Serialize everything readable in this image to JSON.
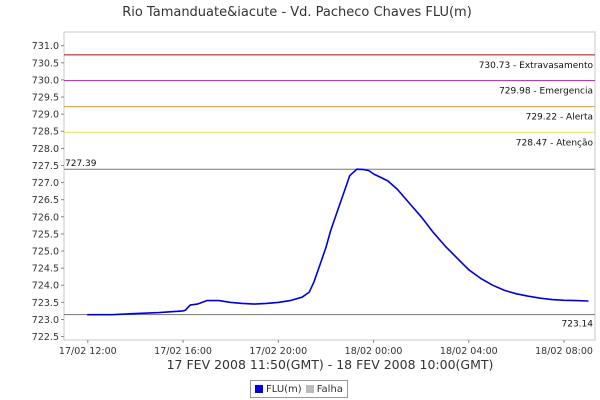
{
  "chart_data": {
    "type": "line",
    "title": "Rio Tamanduate&iacute - Vd. Pacheco Chaves FLU(m)",
    "xlabel": "17 FEV 2008 11:50(GMT) - 18 FEV 2008 10:00(GMT)",
    "ylabel": "",
    "ylim": [
      722.4,
      731.4
    ],
    "yticks": [
      722.5,
      723.0,
      723.5,
      724.0,
      724.5,
      725.0,
      725.5,
      726.0,
      726.5,
      727.0,
      727.5,
      728.0,
      728.5,
      729.0,
      729.5,
      730.0,
      730.5,
      731.0
    ],
    "x_ticks": [
      "17/02 12:00",
      "17/02 16:00",
      "17/02 20:00",
      "18/02 00:00",
      "18/02 04:00",
      "18/02 08:00"
    ],
    "x_tick_hours": [
      12,
      16,
      20,
      24,
      28,
      32
    ],
    "xlim_hours": [
      11,
      33.3
    ],
    "grid": false,
    "legend_position": "bottom",
    "series": [
      {
        "name": "FLU(m)",
        "color": "#0000dd",
        "x_hours": [
          12.0,
          13.0,
          14.0,
          15.0,
          16.0,
          16.1,
          16.3,
          16.6,
          17.0,
          17.5,
          18.0,
          18.5,
          19.0,
          19.5,
          20.0,
          20.5,
          21.0,
          21.3,
          21.5,
          21.7,
          22.0,
          22.2,
          22.5,
          22.8,
          23.0,
          23.3,
          23.6,
          23.8,
          24.0,
          24.3,
          24.6,
          25.0,
          25.5,
          26.0,
          26.5,
          27.0,
          27.5,
          28.0,
          28.5,
          29.0,
          29.5,
          30.0,
          30.5,
          31.0,
          31.5,
          32.0,
          32.5,
          33.0
        ],
        "values": [
          723.14,
          723.14,
          723.17,
          723.2,
          723.25,
          723.27,
          723.42,
          723.45,
          723.55,
          723.55,
          723.5,
          723.47,
          723.45,
          723.47,
          723.5,
          723.55,
          723.65,
          723.8,
          724.1,
          724.5,
          725.1,
          725.6,
          726.2,
          726.8,
          727.2,
          727.39,
          727.38,
          727.35,
          727.25,
          727.15,
          727.05,
          726.8,
          726.4,
          726.0,
          725.55,
          725.15,
          724.8,
          724.45,
          724.2,
          724.0,
          723.85,
          723.75,
          723.68,
          723.62,
          723.58,
          723.56,
          723.55,
          723.54
        ]
      },
      {
        "name": "Falha",
        "color": "#bbbbbb",
        "x_hours": [],
        "values": []
      }
    ],
    "thresholds": [
      {
        "value": 730.73,
        "label": "730.73 - Extravasamento",
        "color": "#cc0000"
      },
      {
        "value": 729.98,
        "label": "729.98 - Emergencia",
        "color": "#dd00dd"
      },
      {
        "value": 729.22,
        "label": "729.22 - Alerta",
        "color": "#ff9900"
      },
      {
        "value": 728.47,
        "label": "728.47 - Atenção",
        "color": "#eeee00"
      }
    ],
    "annotations": [
      {
        "value": 727.39,
        "label": "727.39",
        "position": "left",
        "color": "#777777"
      },
      {
        "value": 723.14,
        "label": "723.14",
        "position": "right",
        "color": "#777777"
      }
    ]
  }
}
